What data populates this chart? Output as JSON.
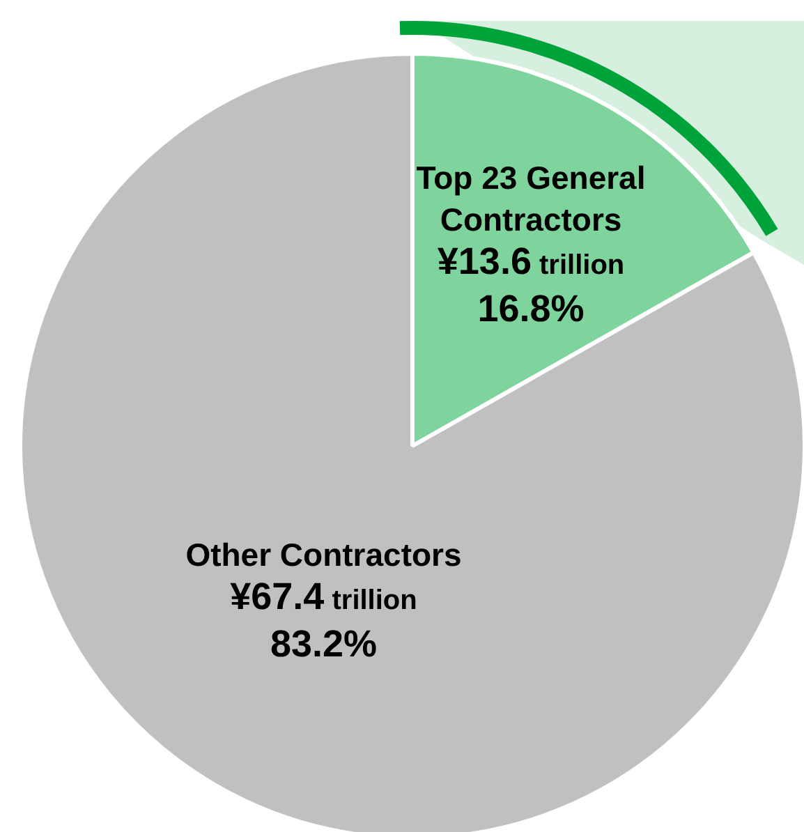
{
  "chart_data": {
    "type": "pie",
    "categories": [
      "Top 23 General Contractors",
      "Other Contractors"
    ],
    "values": [
      13.6,
      67.4
    ],
    "colors": [
      "#7fd39c",
      "#c0c0c0"
    ],
    "value_labels": [
      "¥13.6 trillion",
      "¥67.4 trillion"
    ],
    "annotations": [
      "16.8%",
      "83.2%"
    ],
    "legend": false
  }
}
